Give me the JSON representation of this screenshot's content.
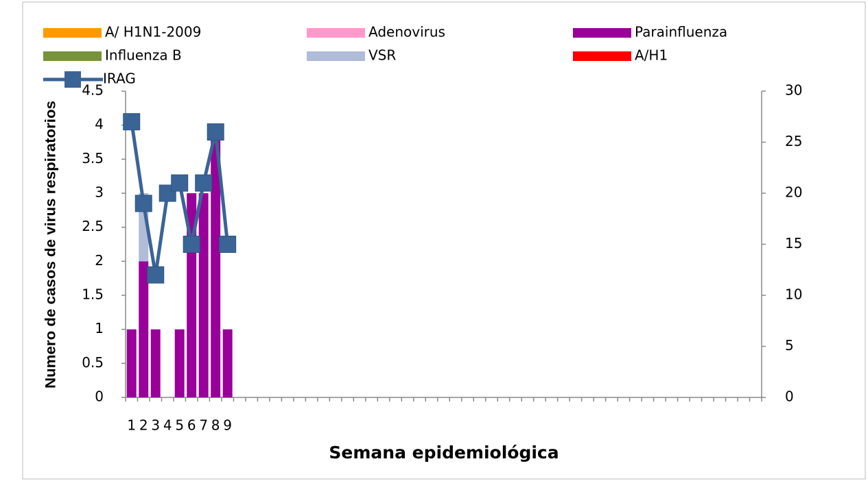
{
  "chart_data": {
    "type": "bar",
    "x_label": "Semana epidemiológica",
    "y_label": "Numero de casos de virus respiratorios",
    "categories": [
      "1",
      "2",
      "3",
      "4",
      "5",
      "6",
      "7",
      "8",
      "9",
      null,
      null,
      null,
      null,
      null,
      null,
      null,
      null,
      null,
      null,
      null,
      null,
      null,
      null,
      null,
      null,
      null,
      null,
      null,
      null,
      null,
      null,
      null,
      null,
      null,
      null,
      null,
      null,
      null,
      null,
      null,
      null,
      null,
      null,
      null,
      null,
      null,
      null,
      null,
      null,
      null,
      null,
      null,
      null
    ],
    "stacked": true,
    "series": [
      {
        "name": "A/ H1N1-2009",
        "color": "#ff9900",
        "values": [
          0,
          0,
          0,
          0,
          0,
          0,
          0,
          0,
          0,
          null,
          null,
          null,
          null,
          null,
          null,
          null,
          null,
          null,
          null,
          null,
          null,
          null,
          null,
          null,
          null,
          null,
          null,
          null,
          null,
          null,
          null,
          null,
          null,
          null,
          null,
          null,
          null,
          null,
          null,
          null,
          null,
          null,
          null,
          null,
          null,
          null,
          null,
          null,
          null,
          null,
          null,
          null,
          null
        ]
      },
      {
        "name": "Adenovirus",
        "color": "#ff99cc",
        "values": [
          0,
          0,
          0,
          0,
          0,
          0,
          0,
          0,
          0,
          null,
          null,
          null,
          null,
          null,
          null,
          null,
          null,
          null,
          null,
          null,
          null,
          null,
          null,
          null,
          null,
          null,
          null,
          null,
          null,
          null,
          null,
          null,
          null,
          null,
          null,
          null,
          null,
          null,
          null,
          null,
          null,
          null,
          null,
          null,
          null,
          null,
          null,
          null,
          null,
          null,
          null,
          null,
          null
        ]
      },
      {
        "name": "Parainfluenza",
        "color": "#990099",
        "values": [
          1,
          2,
          1,
          0,
          1,
          3,
          3,
          4,
          1,
          null,
          null,
          null,
          null,
          null,
          null,
          null,
          null,
          null,
          null,
          null,
          null,
          null,
          null,
          null,
          null,
          null,
          null,
          null,
          null,
          null,
          null,
          null,
          null,
          null,
          null,
          null,
          null,
          null,
          null,
          null,
          null,
          null,
          null,
          null,
          null,
          null,
          null,
          null,
          null,
          null,
          null,
          null,
          null
        ]
      },
      {
        "name": "Influenza B",
        "color": "#77933c",
        "values": [
          0,
          0,
          0,
          0,
          0,
          0,
          0,
          0,
          0,
          null,
          null,
          null,
          null,
          null,
          null,
          null,
          null,
          null,
          null,
          null,
          null,
          null,
          null,
          null,
          null,
          null,
          null,
          null,
          null,
          null,
          null,
          null,
          null,
          null,
          null,
          null,
          null,
          null,
          null,
          null,
          null,
          null,
          null,
          null,
          null,
          null,
          null,
          null,
          null,
          null,
          null,
          null,
          null
        ]
      },
      {
        "name": "VSR",
        "color": "#b0bcd8",
        "values": [
          0,
          1,
          0,
          0,
          0,
          0,
          0,
          0,
          0,
          null,
          null,
          null,
          null,
          null,
          null,
          null,
          null,
          null,
          null,
          null,
          null,
          null,
          null,
          null,
          null,
          null,
          null,
          null,
          null,
          null,
          null,
          null,
          null,
          null,
          null,
          null,
          null,
          null,
          null,
          null,
          null,
          null,
          null,
          null,
          null,
          null,
          null,
          null,
          null,
          null,
          null,
          null,
          null
        ]
      },
      {
        "name": "A/H1",
        "color": "#ff0000",
        "values": [
          0,
          0,
          0,
          0,
          0,
          0,
          0,
          0,
          0,
          null,
          null,
          null,
          null,
          null,
          null,
          null,
          null,
          null,
          null,
          null,
          null,
          null,
          null,
          null,
          null,
          null,
          null,
          null,
          null,
          null,
          null,
          null,
          null,
          null,
          null,
          null,
          null,
          null,
          null,
          null,
          null,
          null,
          null,
          null,
          null,
          null,
          null,
          null,
          null,
          null,
          null,
          null,
          null
        ]
      },
      {
        "name": "IRAG",
        "type": "line",
        "axis": "y2",
        "color": "#3a6496",
        "values": [
          27,
          19,
          12,
          20,
          21,
          15,
          21,
          26,
          15,
          null,
          null,
          null,
          null,
          null,
          null,
          null,
          null,
          null,
          null,
          null,
          null,
          null,
          null,
          null,
          null,
          null,
          null,
          null,
          null,
          null,
          null,
          null,
          null,
          null,
          null,
          null,
          null,
          null,
          null,
          null,
          null,
          null,
          null,
          null,
          null,
          null,
          null,
          null,
          null,
          null,
          null,
          null,
          null
        ]
      }
    ],
    "ylim": [
      0,
      4.5
    ],
    "yticks": [
      0,
      0.5,
      1,
      1.5,
      2,
      2.5,
      3,
      3.5,
      4,
      4.5
    ],
    "y2lim": [
      0,
      30
    ],
    "y2ticks": [
      0,
      5,
      10,
      15,
      20,
      25,
      30
    ]
  }
}
